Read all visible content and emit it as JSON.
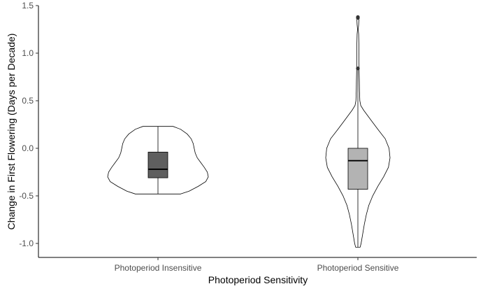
{
  "chart_data": {
    "type": "violin",
    "xlabel": "Photoperiod Sensitivity",
    "ylabel": "Change in First Flowering (Days per Decade)",
    "ylim": [
      -1.15,
      1.5
    ],
    "yticks": [
      1.5,
      1.0,
      0.5,
      0.0,
      -0.5,
      -1.0
    ],
    "ytick_labels": [
      "1.5",
      "1.0",
      "0.5",
      "0.0",
      "-0.5",
      "-1.0"
    ],
    "grid": false,
    "legend": "none",
    "categories": [
      "Photoperiod Insensitive",
      "Photoperiod Sensitive"
    ],
    "groups": [
      {
        "name": "Photoperiod Insensitive",
        "box_color": "#5f5f5f",
        "box": {
          "q1": -0.31,
          "median": -0.22,
          "q3": -0.04,
          "whisker_low": -0.48,
          "whisker_high": 0.23
        },
        "outliers": [],
        "density": [
          [
            -0.48,
            0.45
          ],
          [
            -0.45,
            0.62
          ],
          [
            -0.4,
            0.8
          ],
          [
            -0.35,
            0.95
          ],
          [
            -0.3,
            1.0
          ],
          [
            -0.25,
            0.98
          ],
          [
            -0.2,
            0.92
          ],
          [
            -0.15,
            0.85
          ],
          [
            -0.1,
            0.78
          ],
          [
            -0.05,
            0.74
          ],
          [
            0.0,
            0.72
          ],
          [
            0.05,
            0.7
          ],
          [
            0.1,
            0.66
          ],
          [
            0.15,
            0.58
          ],
          [
            0.2,
            0.45
          ],
          [
            0.23,
            0.3
          ]
        ]
      },
      {
        "name": "Photoperiod Sensitive",
        "box_color": "#b3b3b3",
        "box": {
          "q1": -0.43,
          "median": -0.13,
          "q3": 0.0,
          "whisker_low": -1.04,
          "whisker_high": 0.84
        },
        "outliers": [
          0.84,
          1.37,
          1.38
        ],
        "density": [
          [
            -1.04,
            0.07
          ],
          [
            -1.0,
            0.1
          ],
          [
            -0.9,
            0.15
          ],
          [
            -0.8,
            0.2
          ],
          [
            -0.7,
            0.26
          ],
          [
            -0.6,
            0.34
          ],
          [
            -0.5,
            0.46
          ],
          [
            -0.4,
            0.62
          ],
          [
            -0.3,
            0.8
          ],
          [
            -0.2,
            0.95
          ],
          [
            -0.1,
            1.0
          ],
          [
            0.0,
            0.97
          ],
          [
            0.1,
            0.85
          ],
          [
            0.2,
            0.62
          ],
          [
            0.3,
            0.4
          ],
          [
            0.4,
            0.18
          ],
          [
            0.45,
            0.09
          ],
          [
            0.5,
            0.06
          ],
          [
            0.6,
            0.05
          ],
          [
            0.7,
            0.045
          ],
          [
            0.8,
            0.04
          ],
          [
            0.9,
            0.035
          ],
          [
            1.0,
            0.035
          ],
          [
            1.1,
            0.03
          ],
          [
            1.2,
            0.025
          ],
          [
            1.25,
            0.01
          ],
          [
            1.3,
            0.025
          ],
          [
            1.35,
            0.03
          ],
          [
            1.39,
            0.01
          ]
        ]
      }
    ]
  }
}
